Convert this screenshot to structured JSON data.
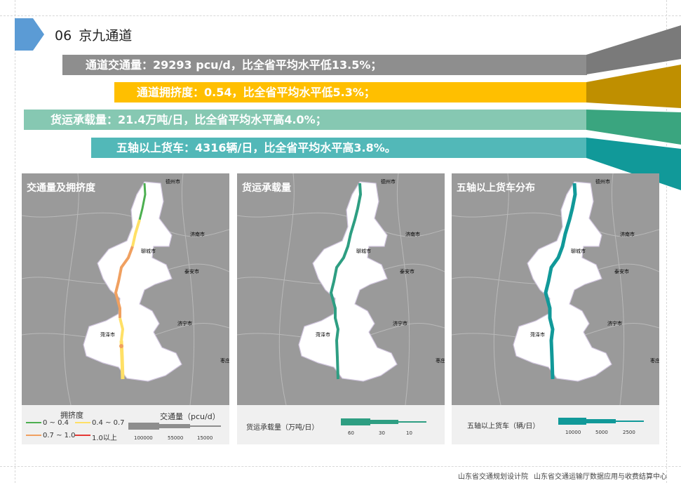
{
  "section": {
    "number": "06",
    "title": "京九通道"
  },
  "bars": [
    {
      "text": "通道交通量：29293 pcu/d，比全省平均水平低13.5%；",
      "color": "#8e8e8e"
    },
    {
      "text": "通道拥挤度：0.54，比全省平均水平低5.3%；",
      "color": "#ffbf00"
    },
    {
      "text": "货运承载量：21.4万吨/日，比全省平均水平高4.0%；",
      "color": "#86c8b2"
    },
    {
      "text": "五轴以上货车：4316辆/日，比全省平均水平高3.8%。",
      "color": "#52b8b8"
    }
  ],
  "maps": [
    {
      "title": "交通量及拥挤度",
      "cities": [
        "德州市",
        "济南市",
        "聊城市",
        "泰安市",
        "济宁市",
        "菏泽市",
        "枣庄"
      ],
      "legend": {
        "congestion_title": "拥挤度",
        "congestion_items": [
          {
            "label": "0 ~ 0.4",
            "color": "#4caf50"
          },
          {
            "label": "0.4 ~ 0.7",
            "color": "#ffe066"
          },
          {
            "label": "0.7 ~ 1.0",
            "color": "#f0a060"
          },
          {
            "label": "1.0以上",
            "color": "#e53935"
          }
        ],
        "volume_title": "交通量（pcu/d）",
        "volume_ticks": [
          "100000",
          "55000",
          "15000"
        ]
      }
    },
    {
      "title": "货运承载量",
      "cities": [
        "德州市",
        "济南市",
        "聊城市",
        "泰安市",
        "济宁市",
        "菏泽市",
        "枣庄"
      ],
      "legend": {
        "title": "货运承载量（万吨/日）",
        "ticks": [
          "60",
          "30",
          "10"
        ],
        "color": "#2e9e82"
      }
    },
    {
      "title": "五轴以上货车分布",
      "cities": [
        "德州市",
        "济南市",
        "聊城市",
        "泰安市",
        "济宁市",
        "菏泽市",
        "枣庄"
      ],
      "legend": {
        "title": "五轴以上货车（辆/日）",
        "ticks": [
          "10000",
          "5000",
          "2500"
        ],
        "color": "#119999"
      }
    }
  ],
  "footer": {
    "org1": "山东省交通规划设计院",
    "org2": "山东省交通运输厅数据应用与收费结算中心"
  }
}
